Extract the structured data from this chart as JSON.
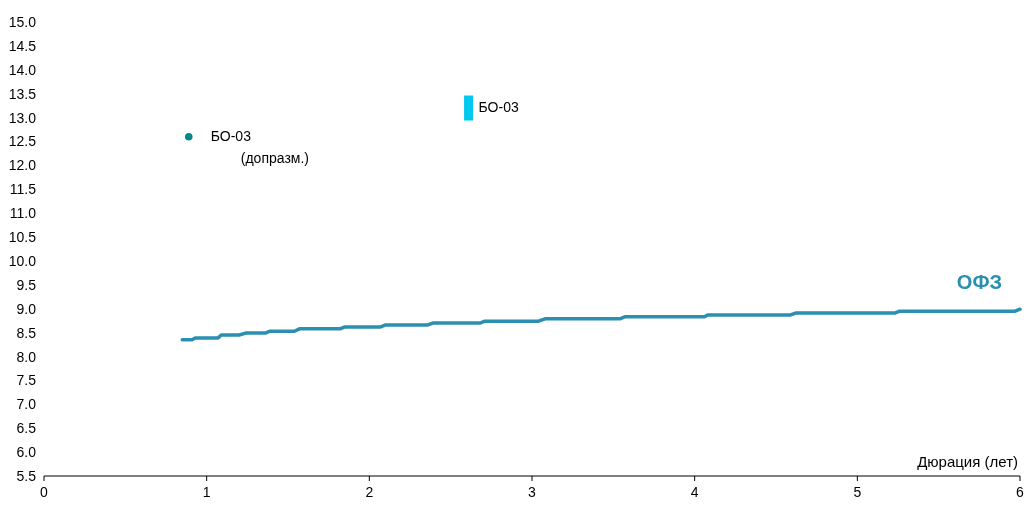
{
  "chart_data": {
    "type": "line",
    "xlabel": "Дюрация (лет)",
    "xlim": [
      0,
      6
    ],
    "xticks": [
      0,
      1,
      2,
      3,
      4,
      5,
      6
    ],
    "ylim": [
      5.5,
      15
    ],
    "yticks": [
      5.5,
      {
        "value": 6,
        "label": "6.0"
      },
      6.5,
      {
        "value": 7,
        "label": "7.0"
      },
      7.5,
      {
        "value": 8,
        "label": "8.0"
      },
      8.5,
      {
        "value": 9,
        "label": "9.0"
      },
      9.5,
      {
        "value": 10,
        "label": "10.0"
      },
      10.5,
      {
        "value": 11,
        "label": "11.0"
      },
      11.5,
      {
        "value": 12,
        "label": "12.0"
      },
      12.5,
      {
        "value": 13,
        "label": "13.0"
      },
      13.5,
      {
        "value": 14,
        "label": "14.0"
      },
      14.5,
      {
        "value": 15,
        "label": "15.0"
      }
    ],
    "grid": false,
    "series": [
      {
        "name": "ОФЗ",
        "color": "#2a8fb0",
        "marker": "none",
        "line_style": "solid",
        "x": [
          0.85,
          0.91,
          0.93,
          1.07,
          1.09,
          1.2,
          1.24,
          1.36,
          1.39,
          1.54,
          1.57,
          1.82,
          1.85,
          2.07,
          2.1,
          2.36,
          2.39,
          2.68,
          2.71,
          3.04,
          3.08,
          3.54,
          3.57,
          4.06,
          4.08,
          4.59,
          4.62,
          5.23,
          5.26,
          5.97,
          6.0
        ],
        "values": [
          8.35,
          8.35,
          8.39,
          8.39,
          8.45,
          8.45,
          8.49,
          8.49,
          8.53,
          8.53,
          8.58,
          8.58,
          8.62,
          8.62,
          8.66,
          8.66,
          8.7,
          8.7,
          8.74,
          8.74,
          8.79,
          8.79,
          8.83,
          8.83,
          8.87,
          8.87,
          8.91,
          8.91,
          8.95,
          8.95,
          8.99
        ]
      },
      {
        "name": "БО-03\n(допразм.)",
        "type": "scatter",
        "color": "#008b8b",
        "marker": "circle",
        "x": [
          0.89
        ],
        "values": [
          12.6
        ]
      },
      {
        "name": "БО-03",
        "type": "scatter",
        "color": "#00c8f0",
        "marker": "square",
        "x": [
          2.61
        ],
        "values": [
          13.2
        ]
      }
    ]
  }
}
